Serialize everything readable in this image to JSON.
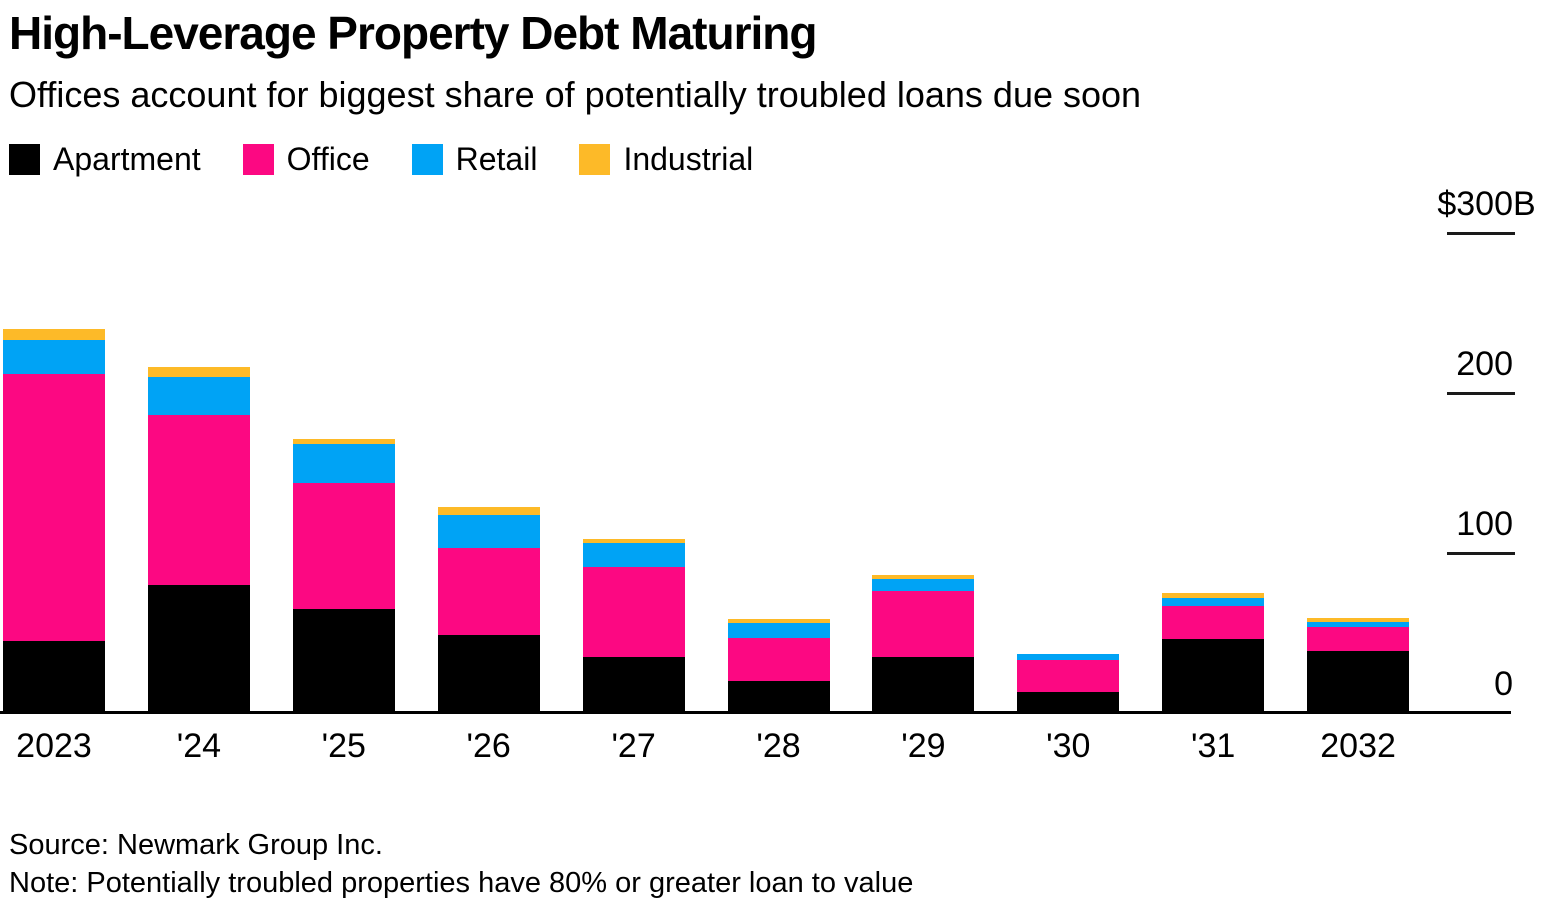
{
  "header": {
    "title": "High-Leverage Property Debt Maturing",
    "subtitle": "Offices account for biggest share of potentially troubled loans due soon"
  },
  "footer": {
    "source": "Source: Newmark Group Inc.",
    "note": "Note: Potentially troubled properties have 80% or greater loan to value"
  },
  "chart_data": {
    "type": "bar",
    "stacked": true,
    "title": "High-Leverage Property Debt Maturing",
    "unit": "billions USD",
    "categories": [
      "2023",
      "'24",
      "'25",
      "'26",
      "'27",
      "'28",
      "'29",
      "'30",
      "'31",
      "2032"
    ],
    "series": [
      {
        "name": "Apartment",
        "color": "#000000",
        "values": [
          45,
          80,
          65,
          49,
          35,
          20,
          35,
          13,
          46,
          39
        ]
      },
      {
        "name": "Office",
        "color": "#fc0882",
        "values": [
          167,
          106,
          79,
          54,
          56,
          27,
          41,
          20,
          21,
          15
        ]
      },
      {
        "name": "Retail",
        "color": "#00a3f5",
        "values": [
          21,
          24,
          24,
          21,
          15,
          9,
          8,
          4,
          5,
          3
        ]
      },
      {
        "name": "Industrial",
        "color": "#fdba28",
        "values": [
          7,
          6,
          3,
          5,
          3,
          2.5,
          2,
          0,
          3,
          2.5
        ]
      }
    ],
    "ylim": [
      0,
      300
    ],
    "yticks": [
      {
        "value": 300,
        "label": "$300",
        "suffix": "B"
      },
      {
        "value": 200,
        "label": "200"
      },
      {
        "value": 100,
        "label": "100"
      },
      {
        "value": 0,
        "label": "0"
      }
    ],
    "grid": false,
    "legend_position": "top-left",
    "axis_side": "right"
  }
}
